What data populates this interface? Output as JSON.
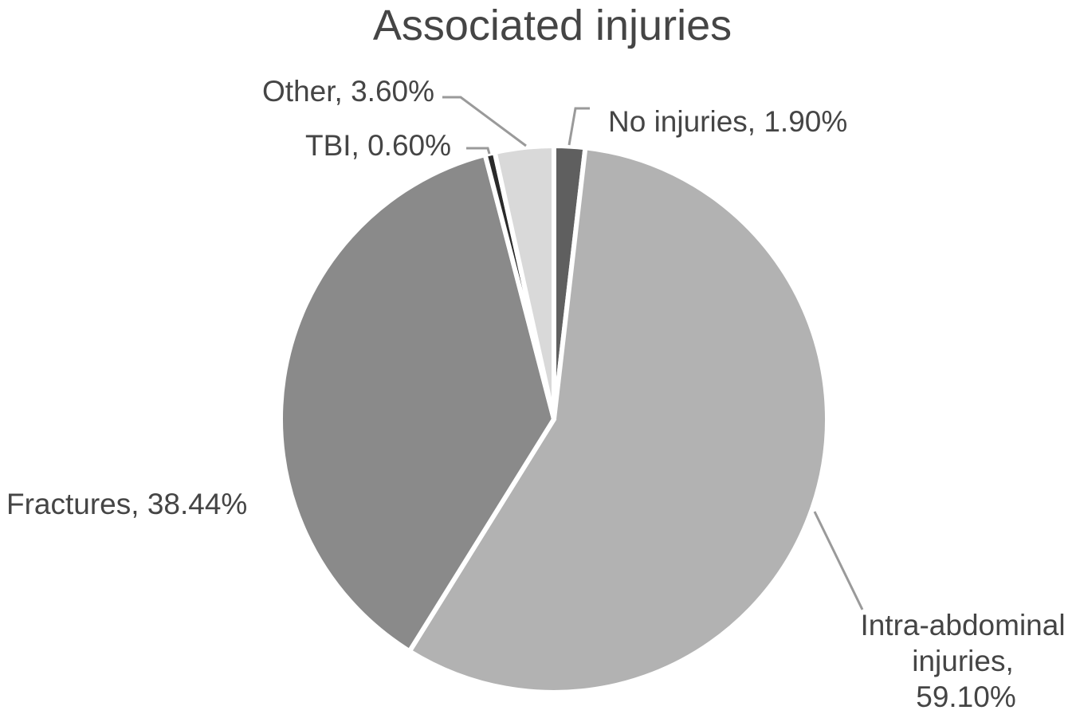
{
  "chart_data": {
    "type": "pie",
    "title": "Associated injuries",
    "slices": [
      {
        "label": "No injuries",
        "value": 1.9,
        "value_text": "1.90%",
        "color": "#5f5f5f"
      },
      {
        "label": "Intra-abdominal injuries",
        "value": 59.1,
        "value_text": "59.10%",
        "color": "#b2b2b2"
      },
      {
        "label": "Fractures",
        "value": 38.44,
        "value_text": "38.44%",
        "color": "#8a8a8a"
      },
      {
        "label": "TBI",
        "value": 0.6,
        "value_text": "0.60%",
        "color": "#2a2a2a"
      },
      {
        "label": "Other",
        "value": 3.6,
        "value_text": "3.60%",
        "color": "#d9d9d9"
      }
    ],
    "data_labels": {
      "no_injuries": "No injuries, 1.90%",
      "intra_line1": "Intra-abdominal",
      "intra_line2": "injuries,",
      "intra_line3": "59.10%",
      "fractures": "Fractures, 38.44%",
      "tbi": "TBI, 0.60%",
      "other": "Other, 3.60%"
    },
    "legend": "none"
  }
}
